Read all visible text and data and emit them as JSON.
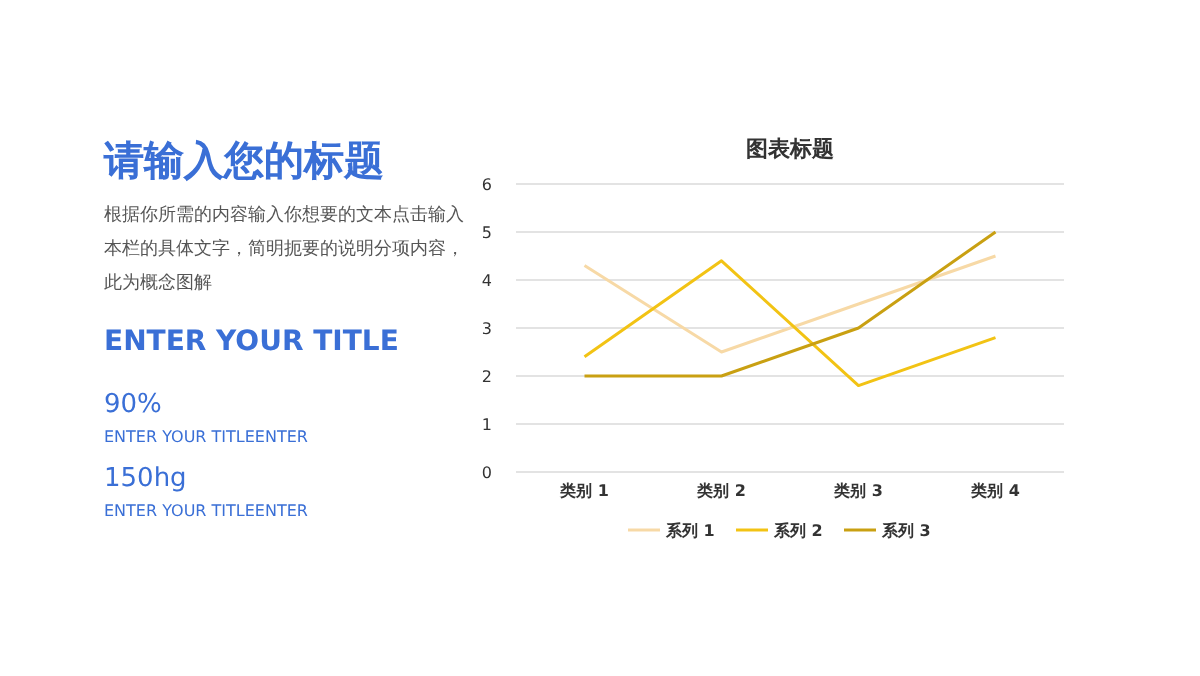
{
  "chart_data": [
    {
      "type": "other",
      "title": "请输入您的标题",
      "subtitle": "根据你所需的内容输入你想要的文本点击输入本栏的具体文字，简明扼要的说明分项内容，此为概念图解",
      "annotations": [
        "ENTER YOUR TITLE",
        "90%",
        "ENTER YOUR TITLEENTER",
        "150hg",
        "ENTER YOUR TITLEENTER"
      ]
    },
    {
      "type": "line",
      "title": "图表标题",
      "categories": [
        "类别 1",
        "类别 2",
        "类别 3",
        "类别 4"
      ],
      "series": [
        {
          "name": "系列 1",
          "color": "#f7d9a6",
          "values": [
            4.3,
            2.5,
            3.5,
            4.5
          ]
        },
        {
          "name": "系列 2",
          "color": "#f2c314",
          "values": [
            2.4,
            4.4,
            1.8,
            2.8
          ]
        },
        {
          "name": "系列 3",
          "color": "#c9a012",
          "values": [
            2,
            2,
            3,
            5
          ]
        }
      ],
      "ylim": [
        0,
        6
      ],
      "yticks": [
        0,
        1,
        2,
        3,
        4,
        5,
        6
      ],
      "grid": "y",
      "legend": "bottom",
      "marker": "none",
      "line_style": "solid"
    }
  ]
}
